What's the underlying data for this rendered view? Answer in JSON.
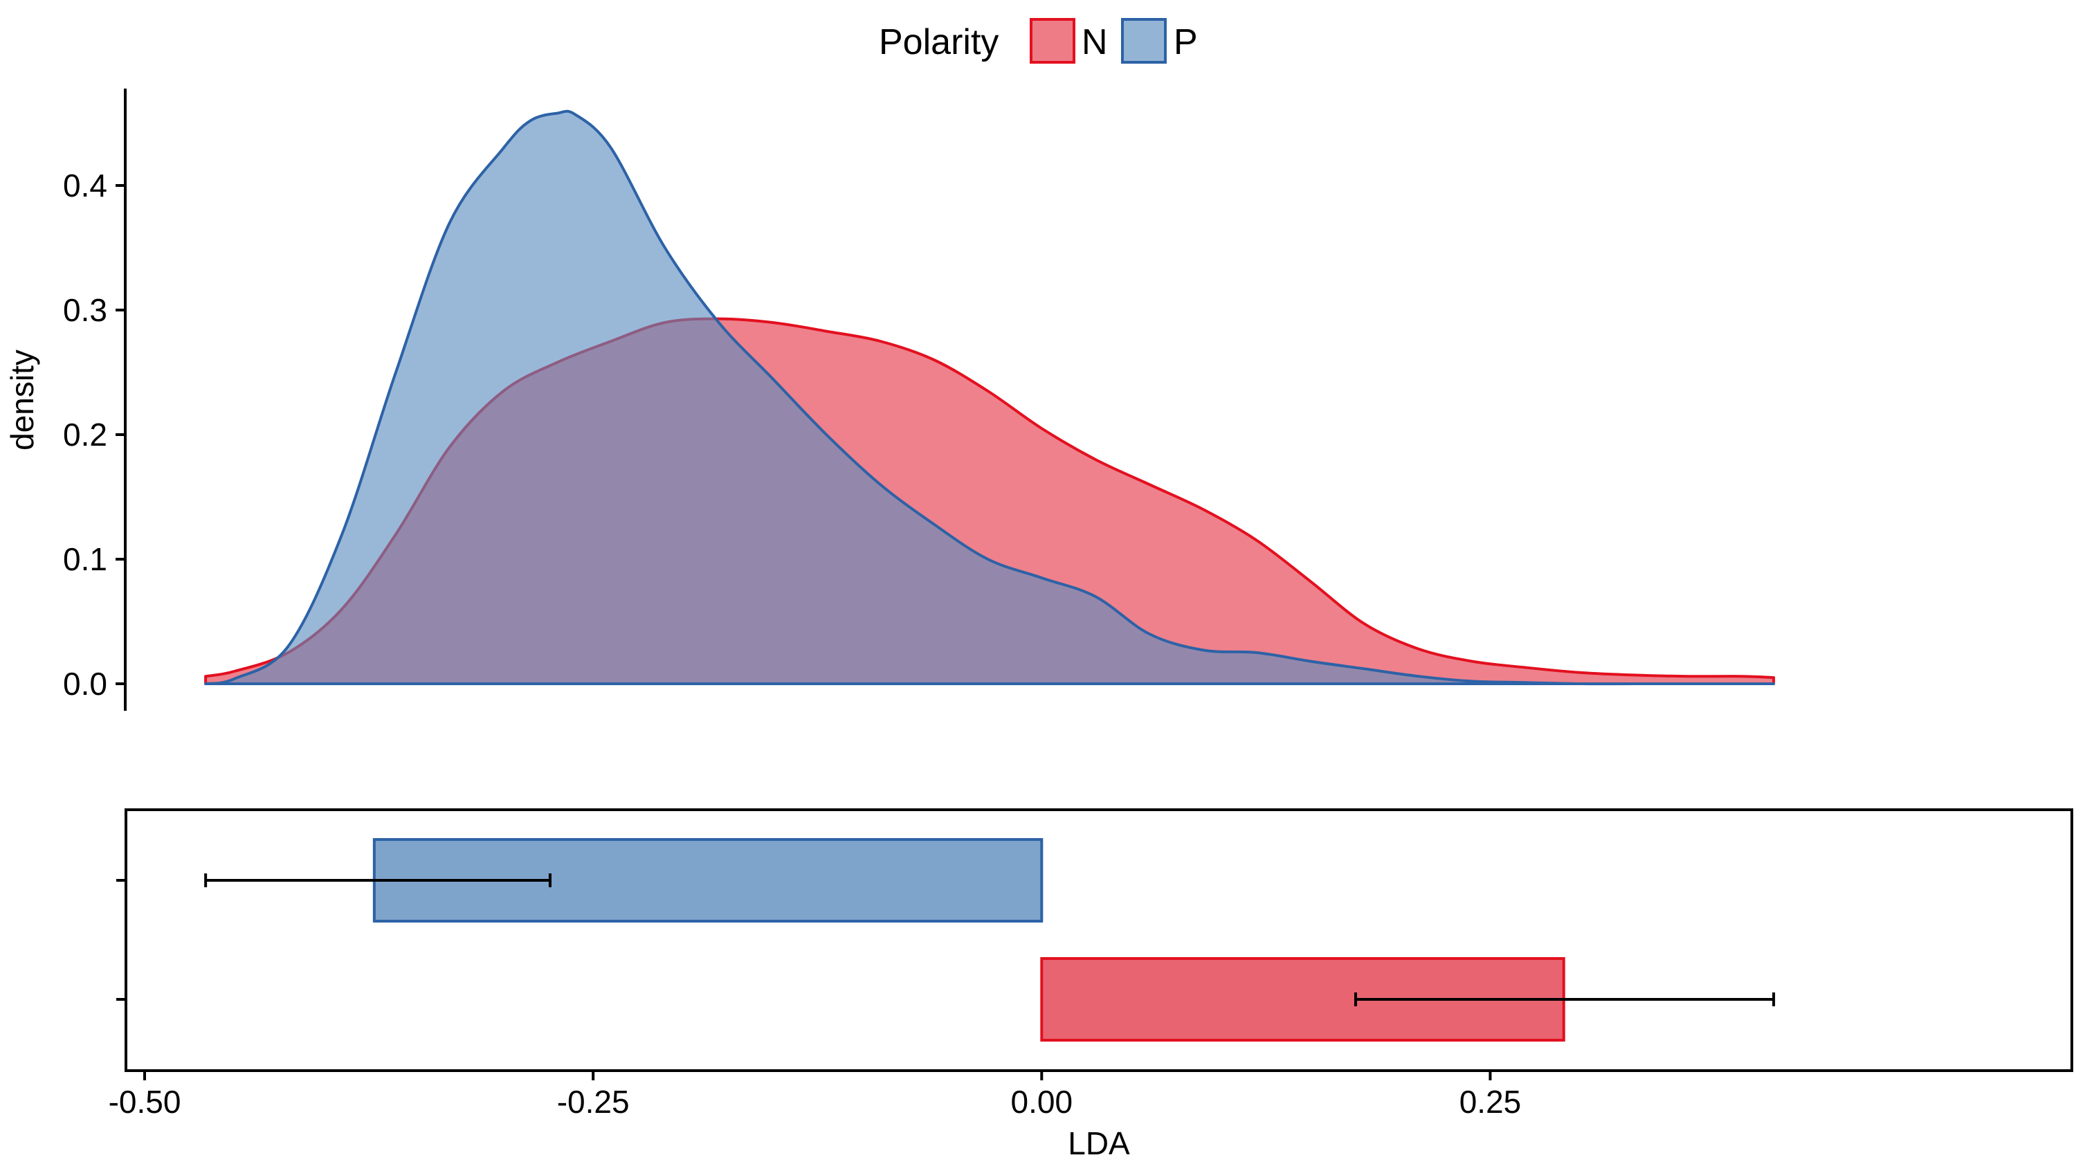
{
  "chart_data": [
    {
      "type": "area",
      "ylabel": "density",
      "ylim": [
        0,
        0.48
      ],
      "xlim": [
        -0.5,
        0.45
      ],
      "y_ticks": [
        "0.0",
        "0.1",
        "0.2",
        "0.3",
        "0.4"
      ],
      "legend": {
        "title": "Polarity",
        "placement": "top-center",
        "entries": [
          {
            "name": "N",
            "fill": "#e8505f",
            "stroke": "#e3101f"
          },
          {
            "name": "P",
            "fill": "#5b8cc0",
            "stroke": "#2d62a6"
          }
        ]
      },
      "series": [
        {
          "name": "N",
          "fill": "#e8505f",
          "stroke": "#e3101f",
          "x": [
            -0.466,
            -0.45,
            -0.42,
            -0.39,
            -0.36,
            -0.33,
            -0.3,
            -0.27,
            -0.24,
            -0.21,
            -0.18,
            -0.15,
            -0.12,
            -0.09,
            -0.06,
            -0.03,
            0.0,
            0.03,
            0.06,
            0.09,
            0.12,
            0.15,
            0.18,
            0.21,
            0.24,
            0.27,
            0.3,
            0.33,
            0.36,
            0.39,
            0.408
          ],
          "y": [
            0.006,
            0.01,
            0.025,
            0.06,
            0.12,
            0.19,
            0.235,
            0.258,
            0.275,
            0.29,
            0.293,
            0.29,
            0.283,
            0.275,
            0.26,
            0.235,
            0.205,
            0.18,
            0.16,
            0.14,
            0.115,
            0.082,
            0.048,
            0.028,
            0.018,
            0.013,
            0.009,
            0.007,
            0.006,
            0.006,
            0.005
          ]
        },
        {
          "name": "P",
          "fill": "#5b8cc0",
          "stroke": "#2d62a6",
          "x": [
            -0.466,
            -0.45,
            -0.42,
            -0.39,
            -0.36,
            -0.33,
            -0.3,
            -0.285,
            -0.27,
            -0.26,
            -0.24,
            -0.21,
            -0.18,
            -0.15,
            -0.12,
            -0.09,
            -0.06,
            -0.03,
            0.0,
            0.03,
            0.06,
            0.09,
            0.12,
            0.15,
            0.18,
            0.21,
            0.24,
            0.27,
            0.3,
            0.33,
            0.36,
            0.39,
            0.408
          ],
          "y": [
            0.0,
            0.004,
            0.03,
            0.12,
            0.25,
            0.37,
            0.43,
            0.452,
            0.458,
            0.457,
            0.43,
            0.35,
            0.29,
            0.245,
            0.2,
            0.16,
            0.128,
            0.1,
            0.085,
            0.07,
            0.04,
            0.027,
            0.025,
            0.018,
            0.012,
            0.006,
            0.002,
            0.001,
            0.0,
            0.0,
            0.0,
            0.0,
            0.0
          ]
        }
      ]
    },
    {
      "type": "bar",
      "orientation": "horizontal",
      "xlabel": "LDA",
      "xlim": [
        -0.5,
        0.45
      ],
      "x_ticks": [
        "-0.50",
        "-0.25",
        "0.00",
        "0.25"
      ],
      "x_tick_values": [
        -0.5,
        -0.25,
        0.0,
        0.25
      ],
      "series": [
        {
          "name": "P",
          "value": -0.372,
          "error_low": -0.466,
          "error_high": -0.274,
          "fill": "#7ea4cc",
          "stroke": "#2d62a6"
        },
        {
          "name": "N",
          "value": 0.291,
          "error_low": 0.175,
          "error_high": 0.408,
          "fill": "#e86470",
          "stroke": "#e3101f"
        }
      ]
    }
  ]
}
